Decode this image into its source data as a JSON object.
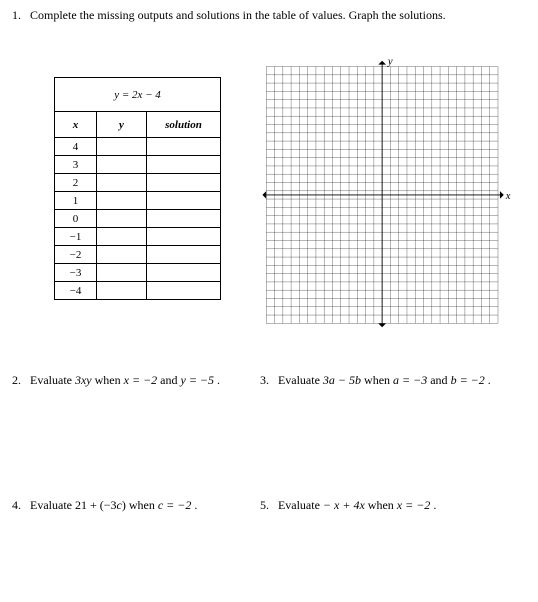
{
  "q1": {
    "num": "1.",
    "text": "Complete the missing outputs and solutions in the table of values.  Graph the solutions.",
    "equation": "y = 2x − 4",
    "headers": {
      "x": "x",
      "y": "y",
      "solution": "solution"
    },
    "xvals": [
      "4",
      "3",
      "2",
      "1",
      "0",
      "−1",
      "−2",
      "−3",
      "−4"
    ],
    "graph": {
      "y_label": "y",
      "x_label": "x",
      "gridlines": 28,
      "grid_color": "#000000",
      "grid_stroke": 0.3,
      "axis_stroke": 0.9,
      "bg": "#ffffff"
    }
  },
  "q2": {
    "num": "2.",
    "text": "Evaluate 3xy when x = −2 and y = −5 ."
  },
  "q3": {
    "num": "3.",
    "text": "Evaluate 3a − 5b when a = −3 and b = −2 ."
  },
  "q4": {
    "num": "4.",
    "text": "Evaluate 21 + (−3c) when c = −2 ."
  },
  "q5": {
    "num": "5.",
    "text": "Evaluate − x + 4x when x = −2 ."
  }
}
